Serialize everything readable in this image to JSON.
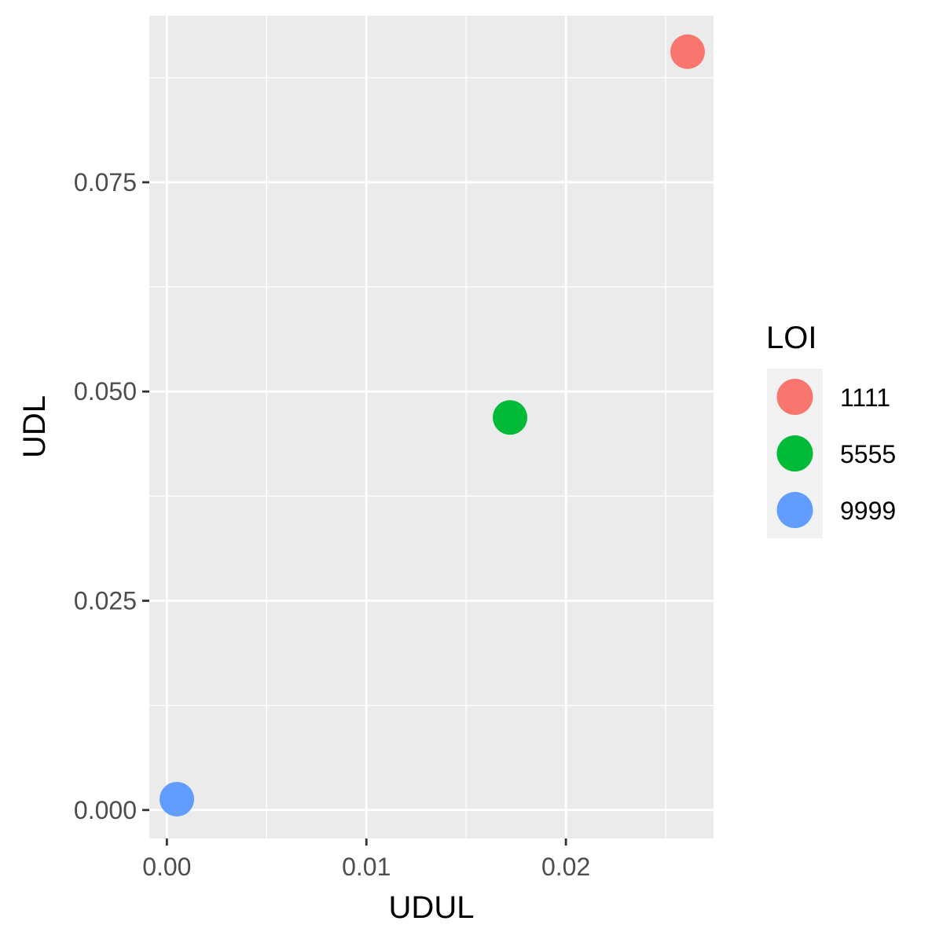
{
  "chart_data": {
    "type": "scatter",
    "xlabel": "UDUL",
    "ylabel": "UDL",
    "xlim": [
      -0.00088,
      0.0274
    ],
    "ylim": [
      -0.0034,
      0.0949
    ],
    "x_ticks": [
      0.0,
      0.01,
      0.02
    ],
    "x_tick_labels": [
      "0.00",
      "0.01",
      "0.02"
    ],
    "x_minor_ticks": [
      0.005,
      0.015,
      0.025
    ],
    "y_ticks": [
      0.0,
      0.025,
      0.05,
      0.075
    ],
    "y_tick_labels": [
      "0.000",
      "0.025",
      "0.050",
      "0.075"
    ],
    "y_minor_ticks": [
      0.0125,
      0.0375,
      0.0625,
      0.0875
    ],
    "grid": true,
    "legend": {
      "title": "LOI",
      "position": "right",
      "entries": [
        {
          "label": "1111",
          "color": "#F8766D"
        },
        {
          "label": "5555",
          "color": "#00BA38"
        },
        {
          "label": "9999",
          "color": "#619CFF"
        }
      ]
    },
    "points": [
      {
        "x": 0.0261,
        "y": 0.0906,
        "group": "1111"
      },
      {
        "x": 0.0172,
        "y": 0.0469,
        "group": "5555"
      },
      {
        "x": 0.0005,
        "y": 0.0013,
        "group": "9999"
      }
    ]
  },
  "colors": {
    "panel_background": "#EBEBEB",
    "grid_line": "#FFFFFF",
    "legend_key_background": "#F2F2F2"
  }
}
